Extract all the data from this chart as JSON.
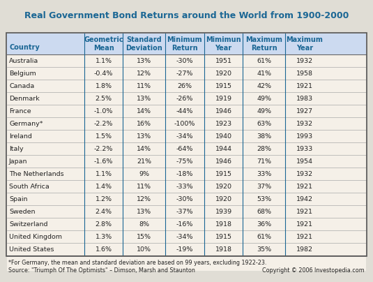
{
  "title": "Real Government Bond Returns around the World from 1900-2000",
  "title_color": "#1a6694",
  "outer_bg_color": "#e0ddd5",
  "inner_bg_color": "#f5f0e8",
  "header_bg_color": "#ccdaf0",
  "header_text_color": "#1a6694",
  "data_row_color": "#f5f0e8",
  "border_color": "#888888",
  "col_header_border": "#1a6694",
  "text_color": "#222222",
  "columns": [
    "Country",
    "Geometric\nMean",
    "Standard\nDeviation",
    "Minimum\nReturn",
    "Mimimun\nYear",
    "Maximum\nReturn",
    "Maximum\nYear"
  ],
  "rows": [
    [
      "Australia",
      "1.1%",
      "13%",
      "-30%",
      "1951",
      "61%",
      "1932"
    ],
    [
      "Belgium",
      "-0.4%",
      "12%",
      "-27%",
      "1920",
      "41%",
      "1958"
    ],
    [
      "Canada",
      "1.8%",
      "11%",
      "26%",
      "1915",
      "42%",
      "1921"
    ],
    [
      "Denmark",
      "2.5%",
      "13%",
      "-26%",
      "1919",
      "49%",
      "1983"
    ],
    [
      "France",
      "-1.0%",
      "14%",
      "-44%",
      "1946",
      "49%",
      "1927"
    ],
    [
      "Germany*",
      "-2.2%",
      "16%",
      "-100%",
      "1923",
      "63%",
      "1932"
    ],
    [
      "Ireland",
      "1.5%",
      "13%",
      "-34%",
      "1940",
      "38%",
      "1993"
    ],
    [
      "Italy",
      "-2.2%",
      "14%",
      "-64%",
      "1944",
      "28%",
      "1933"
    ],
    [
      "Japan",
      "-1.6%",
      "21%",
      "-75%",
      "1946",
      "71%",
      "1954"
    ],
    [
      "The Netherlands",
      "1.1%",
      "9%",
      "-18%",
      "1915",
      "33%",
      "1932"
    ],
    [
      "South Africa",
      "1.4%",
      "11%",
      "-33%",
      "1920",
      "37%",
      "1921"
    ],
    [
      "Spain",
      "1.2%",
      "12%",
      "-30%",
      "1920",
      "53%",
      "1942"
    ],
    [
      "Sweden",
      "2.4%",
      "13%",
      "-37%",
      "1939",
      "68%",
      "1921"
    ],
    [
      "Switzerland",
      "2.8%",
      "8%",
      "-16%",
      "1918",
      "36%",
      "1921"
    ],
    [
      "United Kingdom",
      "1.3%",
      "15%",
      "-34%",
      "1915",
      "61%",
      "1921"
    ],
    [
      "United States",
      "1.6%",
      "10%",
      "-19%",
      "1918",
      "35%",
      "1982"
    ]
  ],
  "footnote": "*For Germany, the mean and standard deviation are based on 99 years, excluding 1922-23.",
  "source": "Source: \"Triumph Of The Optimists\" – Dimson, Marsh and Staunton",
  "copyright": "Copyright © 2006 Investopedia.com"
}
